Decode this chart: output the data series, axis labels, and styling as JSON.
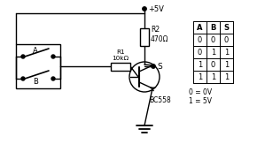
{
  "background_color": "#ffffff",
  "vcc_label": "+5V",
  "r2_label": "R2\n470Ω",
  "r1_label": "R1\n10kΩ",
  "transistor_label": "BC558",
  "s_label": "S",
  "table_headers": [
    "A",
    "B",
    "S"
  ],
  "table_rows": [
    [
      "0",
      "0",
      "0"
    ],
    [
      "0",
      "1",
      "1"
    ],
    [
      "1",
      "0",
      "1"
    ],
    [
      "1",
      "1",
      "1"
    ]
  ],
  "legend_0": "0 = 0V",
  "legend_1": "1 = 5V",
  "switch_a_label": "A",
  "switch_b_label": "B",
  "line_color": "#000000",
  "lw": 1.0
}
